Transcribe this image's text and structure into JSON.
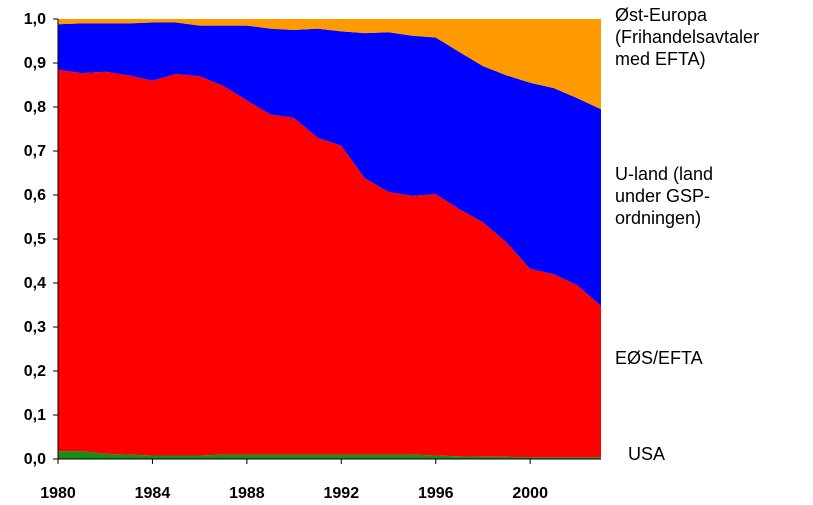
{
  "chart_data": {
    "type": "stacked-area",
    "x": [
      1980,
      1981,
      1982,
      1983,
      1984,
      1985,
      1986,
      1987,
      1988,
      1989,
      1990,
      1991,
      1992,
      1993,
      1994,
      1995,
      1996,
      1997,
      1998,
      1999,
      2000,
      2001,
      2002,
      2003
    ],
    "series": [
      {
        "name": "USA",
        "color": "#1a8c1a",
        "values": [
          0.018,
          0.018,
          0.012,
          0.01,
          0.008,
          0.008,
          0.008,
          0.01,
          0.01,
          0.01,
          0.01,
          0.01,
          0.01,
          0.01,
          0.01,
          0.01,
          0.008,
          0.006,
          0.005,
          0.005,
          0.004,
          0.004,
          0.004,
          0.004
        ]
      },
      {
        "name": "EØS/EFTA",
        "color": "#ff0000",
        "values": [
          0.867,
          0.859,
          0.868,
          0.862,
          0.852,
          0.867,
          0.862,
          0.838,
          0.805,
          0.773,
          0.765,
          0.72,
          0.702,
          0.628,
          0.597,
          0.588,
          0.594,
          0.562,
          0.533,
          0.487,
          0.428,
          0.416,
          0.391,
          0.344
        ]
      },
      {
        "name": "U-land (land\nunder GSP-\nordningen)",
        "color": "#0000ff",
        "values": [
          0.103,
          0.113,
          0.11,
          0.118,
          0.132,
          0.117,
          0.115,
          0.137,
          0.17,
          0.195,
          0.2,
          0.248,
          0.26,
          0.33,
          0.363,
          0.364,
          0.356,
          0.357,
          0.355,
          0.38,
          0.423,
          0.423,
          0.425,
          0.447
        ]
      },
      {
        "name": "Øst-Europa\n(Frihandelsavtaler\nmed EFTA)",
        "color": "#ff9900",
        "values": [
          0.012,
          0.01,
          0.01,
          0.01,
          0.008,
          0.008,
          0.015,
          0.015,
          0.015,
          0.022,
          0.025,
          0.022,
          0.028,
          0.032,
          0.03,
          0.038,
          0.042,
          0.075,
          0.107,
          0.128,
          0.145,
          0.157,
          0.18,
          0.205
        ]
      }
    ],
    "xlim": [
      1980,
      2003
    ],
    "xticks": [
      1980,
      1984,
      1988,
      1992,
      1996,
      2000
    ],
    "ylim": [
      0,
      1
    ],
    "yticks": [
      {
        "value": 0,
        "label": "0,0"
      },
      {
        "value": 0.1,
        "label": "0,1"
      },
      {
        "value": 0.2,
        "label": "0,2"
      },
      {
        "value": 0.3,
        "label": "0,3"
      },
      {
        "value": 0.4,
        "label": "0,4"
      },
      {
        "value": 0.5,
        "label": "0,5"
      },
      {
        "value": 0.6,
        "label": "0,6"
      },
      {
        "value": 0.7,
        "label": "0,7"
      },
      {
        "value": 0.8,
        "label": "0,8"
      },
      {
        "value": 0.9,
        "label": "0,9"
      },
      {
        "value": 1,
        "label": "1,0"
      }
    ],
    "legend": "right"
  }
}
